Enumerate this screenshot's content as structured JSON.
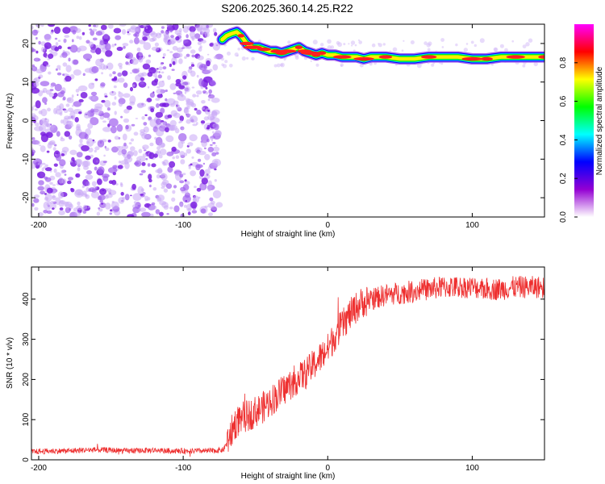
{
  "title": "S206.2025.360.14.25.R22",
  "chart_data": [
    {
      "type": "heatmap",
      "xlabel": "Height of straight line (km)",
      "ylabel": "Frequency (Hz)",
      "xlim": [
        -205,
        150
      ],
      "ylim": [
        -25,
        25
      ],
      "xticks": [
        -200,
        -100,
        0,
        100
      ],
      "yticks": [
        20,
        10,
        0,
        -10,
        -20
      ],
      "noise_region": {
        "x_range": [
          -205,
          -75
        ],
        "y_range": [
          -25,
          25
        ]
      },
      "ridge": {
        "x": [
          -73,
          -70,
          -67,
          -63,
          -60,
          -56,
          -52,
          -48,
          -44,
          -40,
          -36,
          -32,
          -28,
          -24,
          -20,
          -16,
          -12,
          -8,
          -4,
          0,
          5,
          10,
          15,
          20,
          25,
          30,
          40,
          50,
          60,
          70,
          80,
          90,
          100,
          110,
          120,
          130,
          140,
          150
        ],
        "y": [
          21,
          22,
          22.5,
          23,
          22,
          20,
          19,
          19,
          18.5,
          18,
          18,
          17.5,
          18,
          18.5,
          19,
          18,
          17.5,
          17,
          17.5,
          17,
          17,
          16.5,
          16.5,
          16.5,
          16,
          16.5,
          16.5,
          16,
          16,
          16.5,
          16.5,
          16.5,
          16,
          16,
          16.5,
          16.5,
          16.5,
          16.5
        ]
      },
      "colorbar": {
        "label": "Normalized spectral amplitude",
        "ticks": [
          0.0,
          0.2,
          0.4,
          0.6,
          0.8
        ],
        "tick_labels": [
          "0.0",
          "0.2",
          "0.4",
          "0.6",
          "0.8"
        ],
        "range": [
          0,
          1
        ],
        "colormap": [
          "#ffffff",
          "#9400d3",
          "#0000ff",
          "#00ffff",
          "#00ff00",
          "#ffff00",
          "#ff0000",
          "#ff00ff"
        ]
      }
    },
    {
      "type": "line",
      "xlabel": "Height of straight line (km)",
      "ylabel": "SNR (10 * v/v)",
      "xlim": [
        -205,
        150
      ],
      "ylim": [
        0,
        480
      ],
      "xticks": [
        -200,
        -100,
        0,
        100
      ],
      "yticks": [
        0,
        100,
        200,
        300,
        400
      ],
      "color": "#ee3030",
      "x": [
        -205,
        -190,
        -180,
        -170,
        -160,
        -150,
        -140,
        -130,
        -120,
        -110,
        -100,
        -90,
        -80,
        -72,
        -68,
        -64,
        -60,
        -55,
        -50,
        -45,
        -40,
        -35,
        -30,
        -25,
        -20,
        -15,
        -10,
        -5,
        0,
        5,
        10,
        15,
        20,
        25,
        30,
        40,
        50,
        60,
        70,
        80,
        90,
        100,
        110,
        120,
        130,
        140,
        150
      ],
      "y": [
        20,
        22,
        22,
        24,
        25,
        24,
        22,
        23,
        24,
        22,
        22,
        22,
        22,
        25,
        60,
        90,
        105,
        110,
        120,
        130,
        145,
        160,
        175,
        190,
        205,
        215,
        235,
        255,
        275,
        310,
        335,
        360,
        380,
        395,
        400,
        410,
        415,
        420,
        425,
        430,
        430,
        430,
        425,
        425,
        430,
        430,
        430
      ]
    }
  ],
  "colors": {
    "line": "#ee3030"
  }
}
